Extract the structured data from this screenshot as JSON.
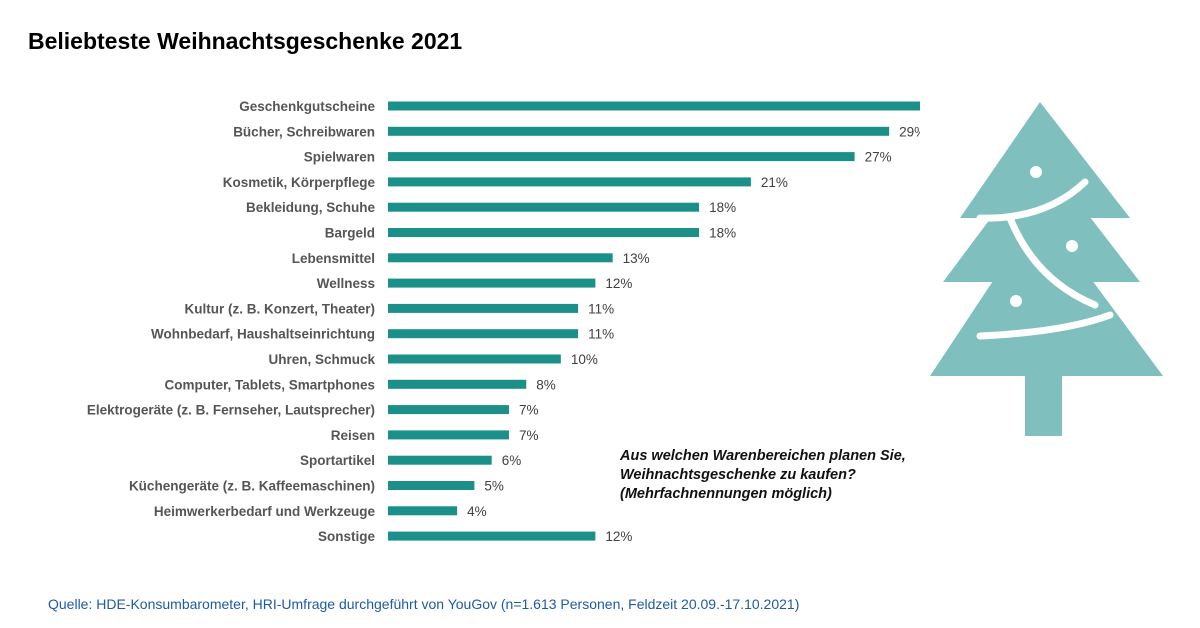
{
  "title": "Beliebteste Weihnachtsgeschenke 2021",
  "question": [
    "Aus welchen Warenbereichen planen Sie,",
    "Weihnachtsgeschenke zu kaufen?",
    "(Mehrfachnennungen möglich)"
  ],
  "source": "Quelle: HDE-Konsumbarometer, HRI-Umfrage durchgeführt von YouGov (n=1.613 Personen, Feldzeit 20.09.-17.10.2021)",
  "tree_icon": "christmas-tree-icon",
  "colors": {
    "bar": "#1a9089",
    "tree": "#7fbfbe",
    "source_text": "#1f5aa6"
  },
  "chart_data": {
    "type": "bar",
    "orientation": "horizontal",
    "title": "Beliebteste Weihnachtsgeschenke 2021",
    "value_suffix": "%",
    "xlim": [
      0,
      32
    ],
    "grid": false,
    "categories": [
      "Geschenkgutscheine",
      "Bücher, Schreibwaren",
      "Spielwaren",
      "Kosmetik, Körperpflege",
      "Bekleidung, Schuhe",
      "Bargeld",
      "Lebensmittel",
      "Wellness",
      "Kultur (z. B. Konzert, Theater)",
      "Wohnbedarf, Haushaltseinrichtung",
      "Uhren, Schmuck",
      "Computer, Tablets, Smartphones",
      "Elektrogeräte (z. B. Fernseher, Lautsprecher)",
      "Reisen",
      "Sportartikel",
      "Küchengeräte (z. B. Kaffeemaschinen)",
      "Heimwerkerbedarf und Werkzeuge",
      "Sonstige"
    ],
    "values": [
      32,
      29,
      27,
      21,
      18,
      18,
      13,
      12,
      11,
      11,
      10,
      8,
      7,
      7,
      6,
      5,
      4,
      12
    ]
  }
}
